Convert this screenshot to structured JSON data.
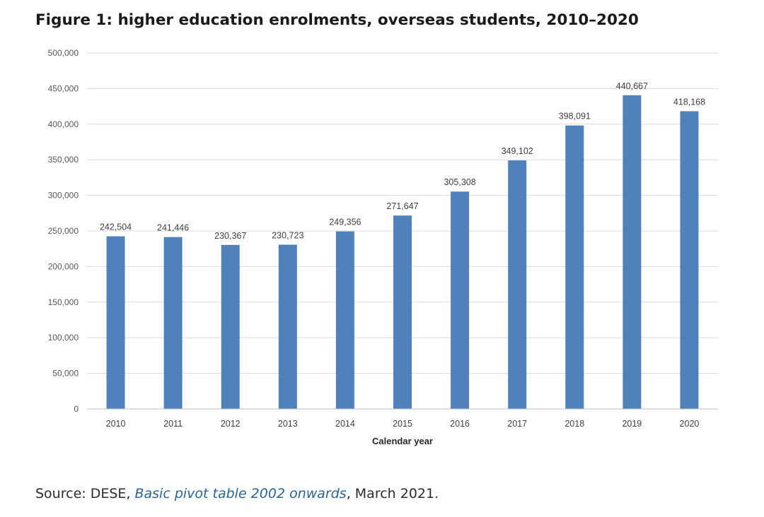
{
  "chart_data": {
    "type": "bar",
    "title": "Figure 1: higher education enrolments, overseas students, 2010–2020",
    "xlabel": "Calendar year",
    "ylabel": "",
    "categories": [
      "2010",
      "2011",
      "2012",
      "2013",
      "2014",
      "2015",
      "2016",
      "2017",
      "2018",
      "2019",
      "2020"
    ],
    "values": [
      242504,
      241446,
      230367,
      230723,
      249356,
      271647,
      305308,
      349102,
      398091,
      440667,
      418168
    ],
    "value_labels": [
      "242,504",
      "241,446",
      "230,367",
      "230,723",
      "249,356",
      "271,647",
      "305,308",
      "349,102",
      "398,091",
      "440,667",
      "418,168"
    ],
    "ylim": [
      0,
      500000
    ],
    "yticks": [
      0,
      50000,
      100000,
      150000,
      200000,
      250000,
      300000,
      350000,
      400000,
      450000,
      500000
    ],
    "ytick_labels": [
      "0",
      "50,000",
      "100,000",
      "150,000",
      "200,000",
      "250,000",
      "300,000",
      "350,000",
      "400,000",
      "450,000",
      "500,000"
    ],
    "grid": true,
    "bar_color": "#4f81bd",
    "grid_color": "#d9d9d9"
  },
  "source": {
    "prefix": "Source: DESE, ",
    "link_text": "Basic pivot table 2002 onwards",
    "suffix": ", March 2021."
  }
}
